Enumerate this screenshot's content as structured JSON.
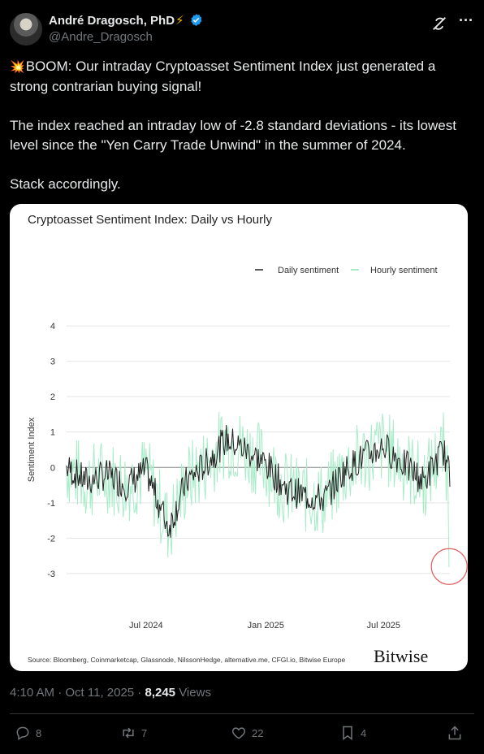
{
  "author": {
    "name": "André Dragosch, PhD",
    "badge": "⚡",
    "handle": "@Andre_Dragosch"
  },
  "tweet": {
    "emoji": "💥",
    "paragraph1": "BOOM: Our intraday Cryptoasset Sentiment Index just generated a strong contrarian buying signal!",
    "paragraph2": "The index reached an intraday low of -2.8 standard deviations - its lowest level since the \"Yen Carry Trade Unwind\" in the summer of 2024.",
    "paragraph3": "Stack accordingly."
  },
  "chart_data": {
    "type": "line",
    "title": "Cryptoasset Sentiment Index: Daily vs Hourly",
    "ylabel": "Sentiment Index",
    "ylim": [
      -3.3,
      4.3
    ],
    "yticks": [
      "4",
      "3",
      "2",
      "1",
      "0",
      "-1",
      "-2",
      "-3"
    ],
    "ytick_values": [
      4,
      3,
      2,
      1,
      0,
      -1,
      -2,
      -3
    ],
    "xticks": [
      "Jul 2024",
      "Jan 2025",
      "Jul 2025"
    ],
    "xtick_values": [
      "2024-07-01",
      "2025-01-01",
      "2025-07-01"
    ],
    "x_range": [
      "2024-03-01",
      "2025-10-11"
    ],
    "legend": [
      "Daily sentiment",
      "Hourly sentiment"
    ],
    "legend_placement": "top-right",
    "colors": {
      "daily": "#222222",
      "hourly": "#a8ecc8",
      "zero_line": "#888888",
      "highlight": "#e06060"
    },
    "series": [
      {
        "name": "Daily sentiment",
        "dates": [
          "2024-03-01",
          "2024-04-01",
          "2024-05-01",
          "2024-06-01",
          "2024-07-01",
          "2024-08-05",
          "2024-09-01",
          "2024-10-01",
          "2024-11-01",
          "2024-12-01",
          "2025-01-01",
          "2025-02-01",
          "2025-03-01",
          "2025-04-01",
          "2025-05-01",
          "2025-06-01",
          "2025-07-01",
          "2025-08-01",
          "2025-09-01",
          "2025-10-01",
          "2025-10-11"
        ],
        "values": [
          0.0,
          -0.4,
          -0.2,
          -0.5,
          -0.1,
          -1.7,
          -0.4,
          0.1,
          0.8,
          0.5,
          0.1,
          -0.6,
          -0.8,
          -0.9,
          -0.1,
          0.3,
          0.6,
          0.1,
          -0.4,
          0.5,
          -0.3
        ]
      },
      {
        "name": "Hourly sentiment",
        "low_date": "2025-10-10",
        "low_value": -2.8
      }
    ],
    "highlight": {
      "date": "2025-10-10",
      "value": -2.8,
      "shape": "circle"
    },
    "source": "Source: Bloomberg, Coinmarketcap, Glassnode, NilssonHedge, alternative.me, CFGI.io, Bitwise Europe",
    "brand": "Bitwise"
  },
  "meta": {
    "time": "4:10 AM · Oct 11, 2025 · ",
    "views_count": "8,245",
    "views_label": " Views"
  },
  "actions": {
    "replies": "8",
    "reposts": "7",
    "likes": "22",
    "bookmarks": "4"
  }
}
